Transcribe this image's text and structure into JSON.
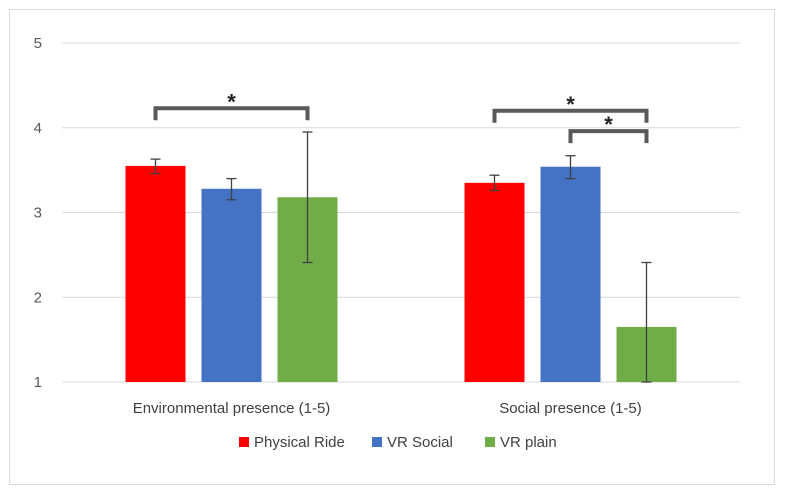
{
  "chart_data": {
    "type": "bar",
    "title": "",
    "xlabel": "",
    "ylabel": "",
    "ylim": [
      1,
      5
    ],
    "yticks": [
      1,
      2,
      3,
      4,
      5
    ],
    "grid": true,
    "legend_position": "bottom",
    "categories": [
      "Environmental presence (1-5)",
      "Social presence (1-5)"
    ],
    "series": [
      {
        "name": "Physical Ride",
        "color": "#ff0000",
        "values": [
          3.55,
          3.35
        ],
        "err_low": [
          3.46,
          3.26
        ],
        "err_high": [
          3.63,
          3.44
        ]
      },
      {
        "name": "VR Social",
        "color": "#4472c4",
        "values": [
          3.28,
          3.54
        ],
        "err_low": [
          3.15,
          3.4
        ],
        "err_high": [
          3.4,
          3.67
        ]
      },
      {
        "name": "VR plain",
        "color": "#70ad47",
        "values": [
          3.18,
          1.65
        ],
        "err_low": [
          2.41,
          1.0
        ],
        "err_high": [
          3.95,
          2.41
        ]
      }
    ],
    "significance": [
      {
        "category": 0,
        "from_series": 0,
        "to_series": 2,
        "level": 4.23,
        "label": "*"
      },
      {
        "category": 1,
        "from_series": 0,
        "to_series": 2,
        "level": 4.2,
        "label": "*"
      },
      {
        "category": 1,
        "from_series": 1,
        "to_series": 2,
        "level": 3.96,
        "label": "*"
      }
    ]
  }
}
